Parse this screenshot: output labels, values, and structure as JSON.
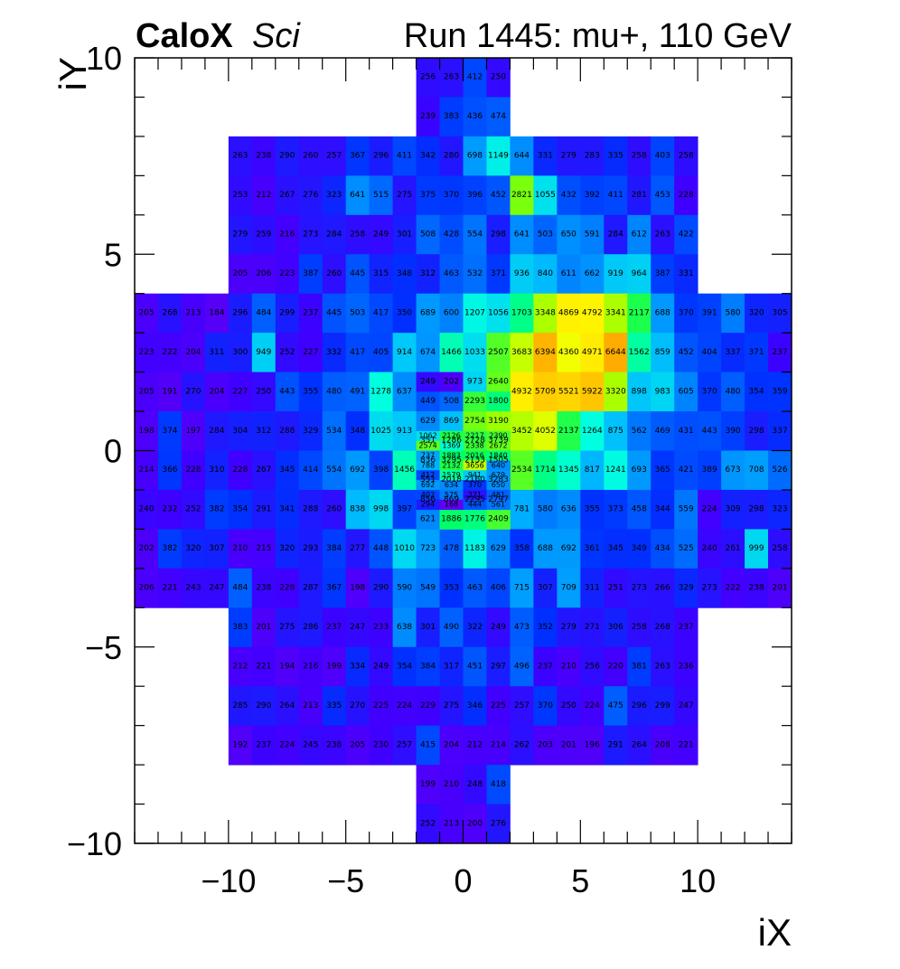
{
  "header": {
    "brand": "CaloX",
    "tag": "Sci",
    "run_info": "Run 1445: mu+, 110 GeV"
  },
  "chart_data": {
    "type": "heatmap",
    "xlabel": "iX",
    "ylabel": "iY",
    "xlim": [
      -14,
      14
    ],
    "ylim": [
      -10,
      10
    ],
    "x_ticks": [
      -10,
      -5,
      0,
      5,
      10
    ],
    "y_ticks": [
      -10,
      -5,
      0,
      5,
      10
    ],
    "x_tick_labels": [
      "−10",
      "−5",
      "0",
      "5",
      "10"
    ],
    "y_tick_labels": [
      "−10",
      "−5",
      "0",
      "5",
      "10"
    ],
    "grid": false,
    "colorscale": [
      "#6a00f0",
      "#3f00ff",
      "#0030ff",
      "#0070ff",
      "#00b8ff",
      "#00ffe0",
      "#00ff60",
      "#8cff00",
      "#ffff00",
      "#ffa000"
    ],
    "colorscale_range": [
      150,
      7000
    ],
    "cells": [
      {
        "x0": -2,
        "x1": 2,
        "y0": 9,
        "y1": 10,
        "values": [
          256,
          263,
          412,
          250
        ]
      },
      {
        "x0": -2,
        "x1": 2,
        "y0": 8,
        "y1": 9,
        "values": [
          239,
          383,
          436,
          474
        ]
      },
      {
        "x0": -10,
        "x1": 10,
        "y0": 7,
        "y1": 8,
        "values": [
          263,
          238,
          290,
          260,
          257,
          367,
          296,
          411,
          342,
          280,
          698,
          1149,
          644,
          331,
          279,
          283,
          335,
          258,
          403,
          258
        ]
      },
      {
        "x0": -10,
        "x1": 10,
        "y0": 6,
        "y1": 7,
        "values": [
          253,
          212,
          267,
          276,
          323,
          641,
          515,
          275,
          375,
          370,
          396,
          452,
          2821,
          1055,
          432,
          392,
          411,
          281,
          453,
          228
        ]
      },
      {
        "x0": -10,
        "x1": 10,
        "y0": 5,
        "y1": 6,
        "values": [
          279,
          259,
          216,
          273,
          284,
          258,
          249,
          301,
          508,
          428,
          554,
          298,
          641,
          503,
          650,
          591,
          284,
          612,
          263,
          422
        ]
      },
      {
        "x0": -10,
        "x1": 10,
        "y0": 4,
        "y1": 5,
        "values": [
          205,
          206,
          223,
          387,
          260,
          445,
          315,
          348,
          312,
          463,
          532,
          371,
          936,
          840,
          611,
          662,
          919,
          964,
          387,
          331
        ]
      },
      {
        "x0": -14,
        "x1": 14,
        "y0": 3,
        "y1": 4,
        "values": [
          205,
          268,
          213,
          184,
          296,
          484,
          299,
          237,
          445,
          503,
          417,
          350,
          689,
          600,
          1207,
          1056,
          1703,
          3348,
          4869,
          4792,
          3341,
          2117,
          688,
          370,
          391,
          580,
          320,
          305
        ]
      },
      {
        "x0": -14,
        "x1": 14,
        "y0": 2,
        "y1": 3,
        "values": [
          223,
          222,
          204,
          311,
          300,
          949,
          252,
          227,
          332,
          417,
          405,
          914,
          674,
          1466,
          1033,
          2507,
          3683,
          6394,
          4360,
          4971,
          6644,
          1562,
          859,
          452,
          404,
          337,
          371,
          237
        ]
      },
      {
        "x0": -14,
        "x1": -2,
        "y0": 1,
        "y1": 2,
        "values": [
          205,
          191,
          270,
          204,
          227,
          250,
          443,
          355,
          480,
          491,
          1278,
          637
        ]
      },
      {
        "x0": 2,
        "x1": 14,
        "y0": 1,
        "y1": 2,
        "values": [
          4932,
          5709,
          5521,
          5922,
          3320,
          898,
          983,
          605,
          370,
          480,
          354,
          359
        ]
      },
      {
        "x0": -14,
        "x1": -2,
        "y0": 0,
        "y1": 1,
        "values": [
          198,
          374,
          197,
          284,
          304,
          312,
          288,
          329,
          534,
          348,
          1025,
          913
        ]
      },
      {
        "x0": 2,
        "x1": 14,
        "y0": 0,
        "y1": 1,
        "values": [
          3452,
          4052,
          2137,
          1264,
          875,
          562,
          469,
          431,
          443,
          390,
          298,
          337
        ]
      },
      {
        "x0": -14,
        "x1": -2,
        "y0": -1,
        "y1": 0,
        "values": [
          214,
          366,
          228,
          310,
          228,
          267,
          345,
          414,
          554,
          692,
          398,
          1456
        ]
      },
      {
        "x0": 2,
        "x1": 14,
        "y0": -1,
        "y1": 0,
        "values": [
          2534,
          1714,
          1345,
          817,
          1241,
          693,
          365,
          421,
          389,
          673,
          708,
          526
        ]
      },
      {
        "x0": -14,
        "x1": -2,
        "y0": -2,
        "y1": -1,
        "values": [
          240,
          232,
          252,
          382,
          354,
          291,
          341,
          288,
          260,
          838,
          998,
          397
        ]
      },
      {
        "x0": 2,
        "x1": 14,
        "y0": -2,
        "y1": -1,
        "values": [
          781,
          580,
          636,
          355,
          373,
          458,
          344,
          559,
          224,
          309,
          298,
          323
        ]
      },
      {
        "x0": -14,
        "x1": 14,
        "y0": -3,
        "y1": -2,
        "values": [
          202,
          382,
          320,
          307,
          210,
          215,
          320,
          293,
          384,
          277,
          448,
          1010,
          723,
          478,
          1183,
          629,
          358,
          688,
          692,
          361,
          345,
          349,
          434,
          525,
          240,
          261,
          999,
          258
        ]
      },
      {
        "x0": -14,
        "x1": 14,
        "y0": -4,
        "y1": -3,
        "values": [
          206,
          221,
          243,
          247,
          484,
          238,
          228,
          287,
          367,
          198,
          290,
          590,
          549,
          353,
          463,
          406,
          715,
          307,
          709,
          311,
          251,
          273,
          266,
          329,
          273,
          222,
          238,
          201
        ]
      },
      {
        "x0": -10,
        "x1": 10,
        "y0": -5,
        "y1": -4,
        "values": [
          383,
          201,
          275,
          286,
          237,
          247,
          233,
          638,
          301,
          490,
          322,
          249,
          473,
          352,
          279,
          271,
          306,
          258,
          268,
          237
        ]
      },
      {
        "x0": -10,
        "x1": 10,
        "y0": -6,
        "y1": -5,
        "values": [
          212,
          221,
          194,
          216,
          199,
          334,
          249,
          354,
          384,
          317,
          451,
          297,
          496,
          237,
          210,
          256,
          220,
          381,
          263,
          236
        ]
      },
      {
        "x0": -10,
        "x1": 10,
        "y0": -7,
        "y1": -6,
        "values": [
          285,
          290,
          264,
          213,
          335,
          270,
          225,
          224,
          229,
          275,
          346,
          225,
          257,
          370,
          250,
          224,
          475,
          296,
          299,
          247
        ]
      },
      {
        "x0": -10,
        "x1": 10,
        "y0": -8,
        "y1": -7,
        "values": [
          192,
          237,
          224,
          245,
          238,
          205,
          230,
          257,
          415,
          204,
          212,
          214,
          262,
          203,
          201,
          196,
          291,
          264,
          208,
          221
        ]
      },
      {
        "x0": -2,
        "x1": 2,
        "y0": -9,
        "y1": -8,
        "values": [
          199,
          210,
          248,
          418
        ]
      },
      {
        "x0": -2,
        "x1": 2,
        "y0": -10,
        "y1": -9,
        "values": [
          252,
          213,
          200,
          276
        ]
      },
      {
        "x0": -2,
        "x1": 2,
        "y0": 1.5,
        "y1": 2,
        "values": [
          249,
          202,
          973,
          2640
        ]
      },
      {
        "x0": -2,
        "x1": 2,
        "y0": 1,
        "y1": 1.5,
        "values": [
          449,
          508,
          2293,
          1800
        ]
      },
      {
        "x0": -2,
        "x1": 2,
        "y0": 0.5,
        "y1": 1,
        "values": [
          629,
          869,
          2754,
          3190
        ]
      },
      {
        "x0": -2,
        "x1": 2,
        "y0": 0,
        "y1": 0.5,
        "values": [
          351,
          1286,
          2728,
          3739
        ]
      },
      {
        "x0": -2,
        "x1": 2,
        "y0": -0.5,
        "y1": 0,
        "values": [
          836,
          3295,
          2133,
          1505
        ]
      },
      {
        "x0": -2,
        "x1": 2,
        "y0": -1,
        "y1": -0.5,
        "values": [
          551,
          2018,
          2160,
          3283
        ]
      },
      {
        "x0": -2,
        "x1": 2,
        "y0": -1.5,
        "y1": -1,
        "values": [
          856,
          869,
          2295,
          2797
        ]
      },
      {
        "x0": -2,
        "x1": 2,
        "y0": -2,
        "y1": -1.5,
        "values": [
          621,
          1886,
          1776,
          2409
        ]
      },
      {
        "x0": -2,
        "x1": 2,
        "y0": 0.25,
        "y1": 0.5,
        "values": [
          1062,
          2126,
          2217,
          2390
        ]
      },
      {
        "x0": -2,
        "x1": 2,
        "y0": 0,
        "y1": 0.25,
        "values": [
          2574,
          1369,
          2338,
          2672
        ]
      },
      {
        "x0": -2,
        "x1": 2,
        "y0": -0.25,
        "y1": 0,
        "values": [
          737,
          1883,
          2016,
          1840
        ]
      },
      {
        "x0": -2,
        "x1": 2,
        "y0": -0.5,
        "y1": -0.25,
        "values": [
          788,
          2132,
          3656,
          640
        ]
      },
      {
        "x0": -2,
        "x1": 2,
        "y0": -0.75,
        "y1": -0.5,
        "values": [
          412,
          1579,
          941,
          679
        ]
      },
      {
        "x0": -2,
        "x1": 2,
        "y0": -1,
        "y1": -0.75,
        "values": [
          692,
          634,
          370,
          650
        ]
      },
      {
        "x0": -2,
        "x1": 2,
        "y0": -1.25,
        "y1": -1,
        "values": [
          402,
          575,
          271,
          481
        ]
      },
      {
        "x0": -2,
        "x1": 2,
        "y0": -1.5,
        "y1": -1.25,
        "values": [
          294,
          168,
          444,
          561
        ]
      }
    ]
  }
}
